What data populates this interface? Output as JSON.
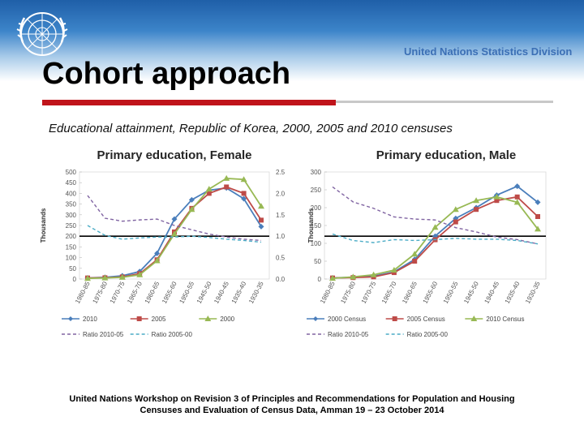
{
  "slide": {
    "division": "United Nations Statistics Division",
    "title": "Cohort approach",
    "subtitle": "Educational attainment, Republic of Korea, 2000, 2005 and 2010 censuses",
    "footer_line1": "United Nations Workshop on  Revision 3 of Principles and Recommendations for Population and Housing",
    "footer_line2": "Censuses and Evaluation of Census Data, Amman 19 – 23 October 2014"
  },
  "colors": {
    "s2010": "#4a7ebb",
    "s2005": "#be4b48",
    "s2000": "#98b954",
    "ratio1": "#8064a2",
    "ratio2": "#4bacc6",
    "accent": "#c0141b"
  },
  "chart_data": [
    {
      "type": "line",
      "title": "Primary education, Female",
      "ylabel": "Thousands",
      "ylim": [
        0,
        500
      ],
      "y2lim": [
        0.0,
        2.5
      ],
      "yticks": [
        "0",
        "50",
        "100",
        "150",
        "200",
        "250",
        "300",
        "350",
        "400",
        "450",
        "500"
      ],
      "y2ticks": [
        "0.0",
        "0.5",
        "1.0",
        "1.5",
        "2.0",
        "2.5"
      ],
      "categories": [
        "1980-85",
        "1975-80",
        "1970-75",
        "1965-70",
        "1960-65",
        "1955-60",
        "1950-55",
        "1945-50",
        "1940-45",
        "1935-40",
        "1930-35"
      ],
      "series": [
        {
          "name": "2010",
          "axis": "left",
          "color": "#4a7ebb",
          "marker": "diamond",
          "values": [
            5,
            8,
            15,
            35,
            120,
            280,
            370,
            415,
            425,
            375,
            245
          ]
        },
        {
          "name": "2005",
          "axis": "left",
          "color": "#be4b48",
          "marker": "square",
          "values": [
            5,
            6,
            10,
            25,
            90,
            220,
            330,
            400,
            430,
            400,
            275
          ]
        },
        {
          "name": "2000",
          "axis": "left",
          "color": "#98b954",
          "marker": "triangle",
          "values": [
            3,
            5,
            8,
            20,
            85,
            210,
            325,
            420,
            470,
            465,
            340
          ]
        },
        {
          "name": "Ratio 2010-05",
          "axis": "right",
          "color": "#8064a2",
          "dash": true,
          "values": [
            1.95,
            1.42,
            1.35,
            1.38,
            1.4,
            1.25,
            1.15,
            1.05,
            0.98,
            0.93,
            0.9
          ]
        },
        {
          "name": "Ratio 2005-00",
          "axis": "right",
          "color": "#4bacc6",
          "dash": true,
          "values": [
            1.25,
            1.02,
            0.93,
            0.96,
            0.98,
            0.98,
            1.0,
            0.97,
            0.93,
            0.9,
            0.86
          ]
        }
      ],
      "legend": [
        "2010",
        "2005",
        "2000",
        "Ratio 2010-05",
        "Ratio 2005-00"
      ]
    },
    {
      "type": "line",
      "title": "Primary education, Male",
      "ylabel": "Thousands",
      "ylim": [
        0,
        300
      ],
      "y2lim": [
        0.0,
        2.5
      ],
      "yticks": [
        "0",
        "50",
        "100",
        "150",
        "200",
        "250",
        "300"
      ],
      "y2ticks": [
        "0.0",
        "0.5",
        "1.0",
        "1.5",
        "2.0",
        "2.5"
      ],
      "categories": [
        "1980-85",
        "1975-80",
        "1970-75",
        "1965-70",
        "1960-65",
        "1955-60",
        "1950-55",
        "1945-50",
        "1940-45",
        "1935-40",
        "1930-35"
      ],
      "series": [
        {
          "name": "2000 Census",
          "axis": "left",
          "color": "#4a7ebb",
          "marker": "diamond",
          "values": [
            3,
            5,
            8,
            20,
            55,
            120,
            170,
            200,
            235,
            260,
            215
          ]
        },
        {
          "name": "2005 Census",
          "axis": "left",
          "color": "#be4b48",
          "marker": "square",
          "values": [
            3,
            4,
            6,
            18,
            50,
            110,
            160,
            195,
            220,
            230,
            175
          ]
        },
        {
          "name": "2010 Census",
          "axis": "left",
          "color": "#98b954",
          "marker": "triangle",
          "values": [
            2,
            6,
            12,
            25,
            70,
            145,
            195,
            220,
            230,
            215,
            140
          ]
        },
        {
          "name": "Ratio 2010-05",
          "axis": "right",
          "color": "#8064a2",
          "dash": true,
          "values": [
            2.15,
            1.8,
            1.65,
            1.45,
            1.4,
            1.38,
            1.2,
            1.1,
            0.98,
            0.92,
            0.82
          ]
        },
        {
          "name": "Ratio 2005-00",
          "axis": "right",
          "color": "#4bacc6",
          "dash": true,
          "values": [
            1.05,
            0.9,
            0.85,
            0.92,
            0.9,
            0.92,
            0.95,
            0.93,
            0.93,
            0.9,
            0.82
          ]
        }
      ],
      "legend": [
        "2000 Census",
        "2005 Census",
        "2010 Census",
        "Ratio 2010-05",
        "Ratio 2005-00"
      ]
    }
  ]
}
